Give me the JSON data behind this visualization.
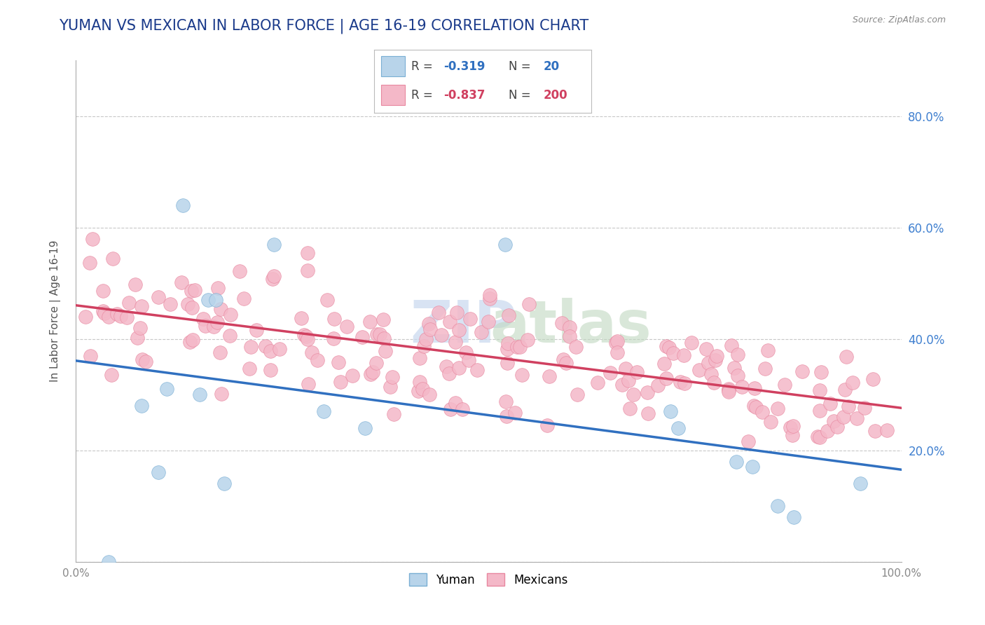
{
  "title": "YUMAN VS MEXICAN IN LABOR FORCE | AGE 16-19 CORRELATION CHART",
  "source": "Source: ZipAtlas.com",
  "ylabel": "In Labor Force | Age 16-19",
  "xlim": [
    0.0,
    1.0
  ],
  "ylim": [
    0.0,
    0.9
  ],
  "x_ticks": [
    0.0,
    1.0
  ],
  "x_tick_labels": [
    "0.0%",
    "100.0%"
  ],
  "y_ticks": [
    0.0,
    0.2,
    0.4,
    0.6,
    0.8
  ],
  "y_tick_labels_right": [
    "",
    "20.0%",
    "40.0%",
    "60.0%",
    "80.0%"
  ],
  "yuman_fill_color": "#b8d4ea",
  "yuman_edge_color": "#7aafd4",
  "mexican_fill_color": "#f4b8c8",
  "mexican_edge_color": "#e888a0",
  "yuman_line_color": "#3070c0",
  "mexican_line_color": "#d04060",
  "background_color": "#ffffff",
  "grid_color": "#c8c8c8",
  "title_color": "#1a3a8a",
  "right_tick_color": "#4080d0",
  "yuman_line_intercept": 0.32,
  "yuman_line_slope": -0.18,
  "mexican_line_intercept": 0.46,
  "mexican_line_slope": -0.18,
  "yuman_scatter_x": [
    0.04,
    0.08,
    0.1,
    0.11,
    0.13,
    0.15,
    0.16,
    0.17,
    0.18,
    0.24,
    0.3,
    0.35,
    0.52,
    0.72,
    0.73,
    0.8,
    0.82,
    0.85,
    0.87,
    0.95
  ],
  "yuman_scatter_y": [
    0.0,
    0.28,
    0.16,
    0.31,
    0.64,
    0.3,
    0.47,
    0.47,
    0.14,
    0.57,
    0.27,
    0.24,
    0.57,
    0.27,
    0.24,
    0.18,
    0.17,
    0.1,
    0.08,
    0.14
  ],
  "watermark_zip_color": "#c8d8ee",
  "watermark_atlas_color": "#c0d8c0"
}
